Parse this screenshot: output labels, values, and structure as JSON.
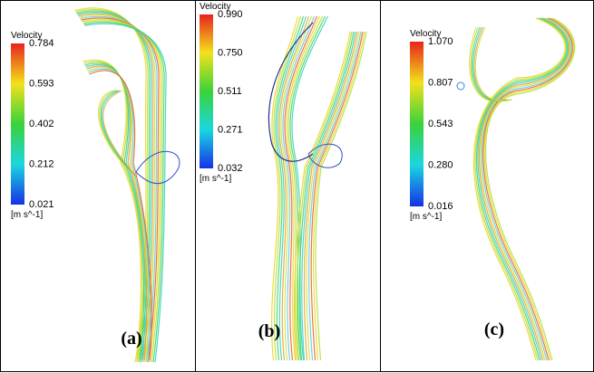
{
  "panels": [
    {
      "label": "(a)",
      "legend": {
        "title": "Velocity",
        "ticks": [
          "0.784",
          "0.593",
          "0.402",
          "0.212",
          "0.021"
        ],
        "unit": "[m s^-1]"
      }
    },
    {
      "label": "(b)",
      "legend": {
        "title": "Velocity",
        "ticks": [
          "0.990",
          "0.750",
          "0.511",
          "0.271",
          "0.032"
        ],
        "unit": "[m s^-1]"
      }
    },
    {
      "label": "(c)",
      "legend": {
        "title": "Velocity",
        "ticks": [
          "1.070",
          "0.807",
          "0.543",
          "0.280",
          "0.016"
        ],
        "unit": "[m s^-1]"
      }
    }
  ]
}
